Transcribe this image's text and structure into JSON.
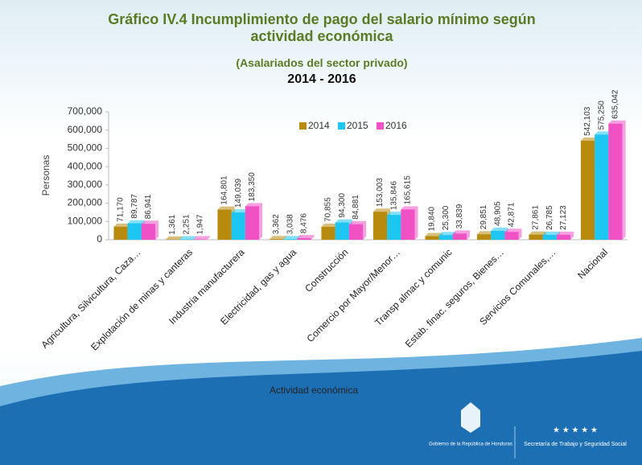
{
  "chart_data": {
    "type": "bar",
    "title": "Gráfico IV.4 Incumplimiento de pago del salario mínimo según actividad económica",
    "subtitle": "(Asalariados del sector privado)",
    "period": "2014 - 2016",
    "y_label": "Personas",
    "x_label": "Actividad económica",
    "categories": [
      "Agricultura, Silvicultura, Caza…",
      "Explotación de minas y canteras",
      "Industria manufacturera",
      "Electricidad, gas y agua",
      "Construcción",
      "Comercio por Mayor/Menor…",
      "Transp almac y comunic",
      "Estab. finac. seguros, Bienes…",
      "Servicios Comunales,…",
      "Nacional"
    ],
    "series": [
      {
        "name": "2014",
        "color": "#b88a0e",
        "values": [
          71170,
          1361,
          164801,
          3362,
          70855,
          153003,
          19840,
          29851,
          27861,
          542103
        ],
        "value_labels": [
          "71,170",
          "1,361",
          "164,801",
          "3,362",
          "70,855",
          "153,003",
          "19,840",
          "29,851",
          "27,861",
          "542,103"
        ]
      },
      {
        "name": "2015",
        "color": "#1ec6f2",
        "values": [
          89787,
          2251,
          149039,
          3038,
          94300,
          135846,
          25300,
          48905,
          26785,
          575250
        ],
        "value_labels": [
          "89,787",
          "2,251",
          "149,039",
          "3,038",
          "94,300",
          "135,846",
          "25,300",
          "48,905",
          "26,785",
          "575,250"
        ]
      },
      {
        "name": "2016",
        "color": "#f052c6",
        "values": [
          86941,
          1947,
          183350,
          8476,
          84881,
          165615,
          33839,
          42871,
          27123,
          635042
        ],
        "value_labels": [
          "86,941",
          "1,947",
          "183,350",
          "8,476",
          "84,881",
          "165,615",
          "33,839",
          "42,871",
          "27,123",
          "635,042"
        ]
      }
    ],
    "ylim": [
      0,
      700000
    ],
    "yticks": [
      0,
      {
        "value": 100000,
        "label": "100,000"
      },
      {
        "value": 200000,
        "label": "200,000"
      },
      {
        "value": 300000,
        "label": "300,000"
      },
      {
        "value": 400000,
        "label": "400,000"
      },
      {
        "value": 500000,
        "label": "500,000"
      },
      {
        "value": 600000,
        "label": "600,000"
      },
      {
        "value": 700000,
        "label": "700,000"
      }
    ],
    "grid": false,
    "legend": "top"
  },
  "footer": {
    "government": "Gobierno de la República de Honduras",
    "ministry": "Secretaría de Trabajo y Seguridad Social"
  }
}
